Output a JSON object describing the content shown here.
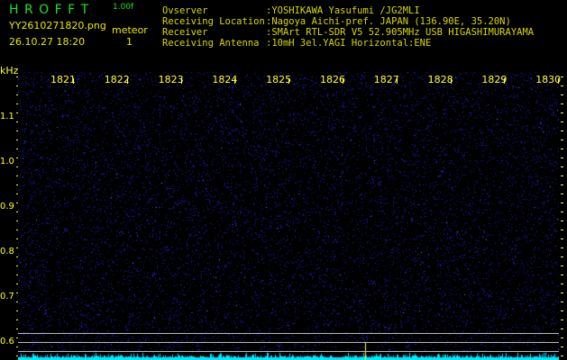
{
  "app": {
    "name": "H R O F F T",
    "version": "1.00f"
  },
  "file": {
    "name": "YY2610271820.png",
    "datetime": "26.10.27 18:20"
  },
  "meteor": {
    "label": "meteor",
    "count": "1"
  },
  "info": [
    {
      "key": "Ovserver",
      "value": ":YOSHIKAWA Yasufumi /JG2MLI"
    },
    {
      "key": "Receiving Location",
      "value": ":Nagoya Aichi-pref. JAPAN (136.90E, 35.20N)"
    },
    {
      "key": "Receiver",
      "value": ":SMArt RTL-SDR V5 52.905MHz USB HIGASHIMURAYAMA"
    },
    {
      "key": "Receiving Antenna",
      "value": ":10mH 3el.YAGI Horizontal:ENE"
    }
  ],
  "axes": {
    "y_unit": "kHz",
    "y_ticks": [
      "1.1",
      "1.0",
      "0.9",
      "0.8",
      "0.7",
      "0.6"
    ],
    "x_ticks": [
      "1821",
      "1822",
      "1823",
      "1824",
      "1825",
      "1826",
      "1827",
      "1828",
      "1829",
      "1830"
    ]
  },
  "colors": {
    "background": "#000000",
    "noise": "#1a1ad0",
    "signal": "#00e8ff",
    "text": "#ffff30",
    "title": "#22e022"
  }
}
